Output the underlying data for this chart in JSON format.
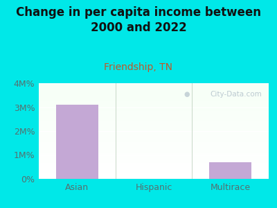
{
  "title": "Change in per capita income between\n2000 and 2022",
  "subtitle": "Friendship, TN",
  "categories": [
    "Asian",
    "Hispanic",
    "Multirace"
  ],
  "values": [
    3100000,
    0,
    700000
  ],
  "bar_color": "#c4a8d5",
  "background_color": "#00e8e8",
  "title_color": "#111111",
  "subtitle_color": "#c05828",
  "tick_color": "#557070",
  "yticks": [
    0,
    1000000,
    2000000,
    3000000,
    4000000
  ],
  "ytick_labels": [
    "0%",
    "1M%",
    "2M%",
    "3M%",
    "4M%"
  ],
  "ylim": [
    0,
    4000000
  ],
  "watermark": "City-Data.com",
  "title_fontsize": 12,
  "subtitle_fontsize": 10
}
